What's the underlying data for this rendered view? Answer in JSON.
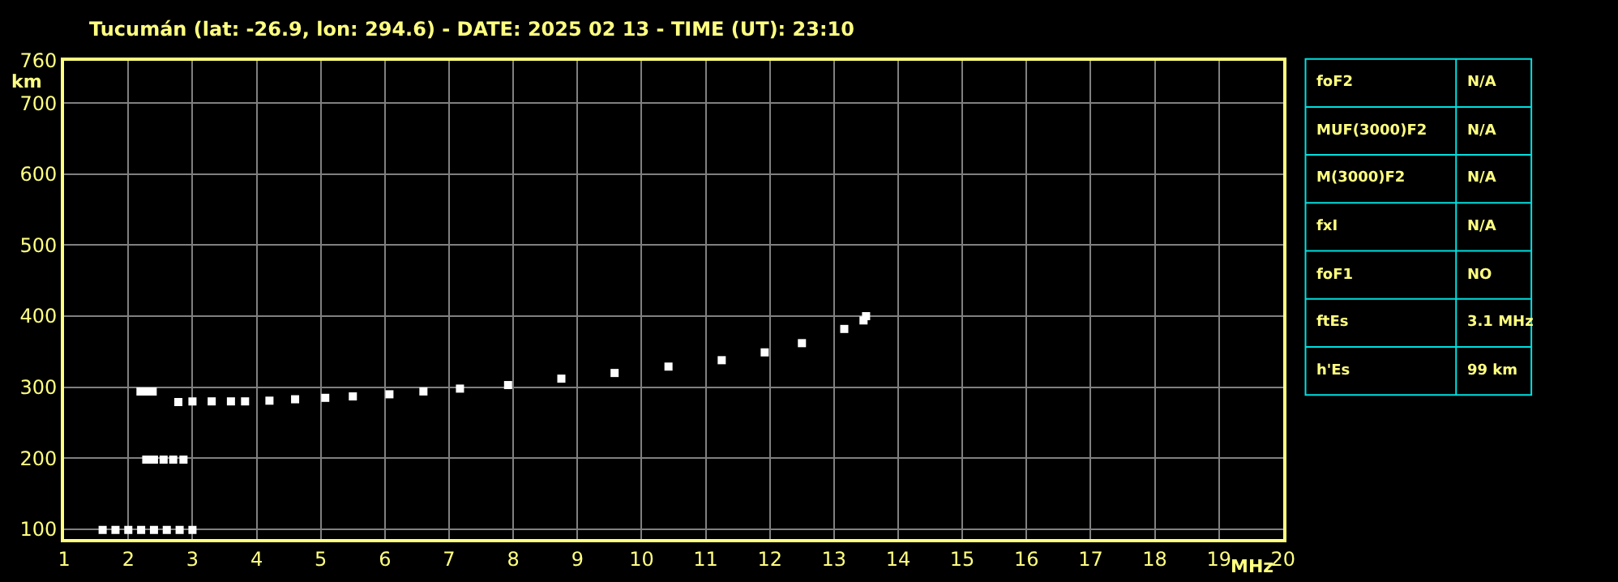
{
  "chart_data": [
    {
      "type": "scatter",
      "title": "Tucumán (lat: -26.9, lon: 294.6) - DATE: 2025 02 13 - TIME (UT): 23:10",
      "xlabel": "MHz",
      "ylabel": "km",
      "series": [
        {
          "color": "#ffffff",
          "x": [
            1.6,
            1.8,
            2.0,
            2.2,
            2.4,
            2.6,
            2.8,
            3.0
          ],
          "values": [
            99,
            99,
            99,
            99,
            99,
            99,
            99,
            99
          ]
        },
        {
          "color": "#ffffff",
          "x": [
            2.28,
            2.4,
            2.55,
            2.7,
            2.86
          ],
          "values": [
            198,
            198,
            198,
            198,
            198
          ]
        },
        {
          "color": "#ffffff",
          "x": [
            2.19,
            2.28,
            2.38
          ],
          "values": [
            294,
            294,
            294
          ]
        },
        {
          "color": "#ffffff",
          "x": [
            2.78,
            3.0,
            3.3,
            3.6,
            3.82,
            4.2,
            4.6,
            5.07,
            5.5,
            6.07,
            6.6,
            7.17,
            7.92,
            8.75,
            9.58,
            10.42,
            11.25,
            11.92,
            12.5,
            13.16,
            13.46,
            13.5
          ],
          "values": [
            279,
            280,
            280,
            280,
            280,
            281,
            283,
            285,
            287,
            290,
            294,
            298,
            303,
            312,
            320,
            329,
            338,
            349,
            362,
            382,
            394,
            400
          ]
        }
      ],
      "marker": "square",
      "grid": true,
      "xlim": [
        1,
        20
      ],
      "xticks": [
        1,
        2,
        3,
        4,
        5,
        6,
        7,
        8,
        9,
        10,
        11,
        12,
        13,
        14,
        15,
        16,
        17,
        18,
        19,
        20
      ],
      "ylim": [
        86,
        760
      ],
      "yticks": [
        100,
        200,
        300,
        400,
        500,
        600,
        700,
        760
      ]
    },
    {
      "type": "other",
      "annotations": [
        "foF2",
        "N/A",
        "MUF(3000)F2",
        "N/A",
        "M(3000)F2",
        "N/A",
        "fxI",
        "N/A",
        "foF1",
        "NO",
        "ftEs",
        "3.1 MHz",
        "h'Es",
        "99 km"
      ]
    }
  ]
}
